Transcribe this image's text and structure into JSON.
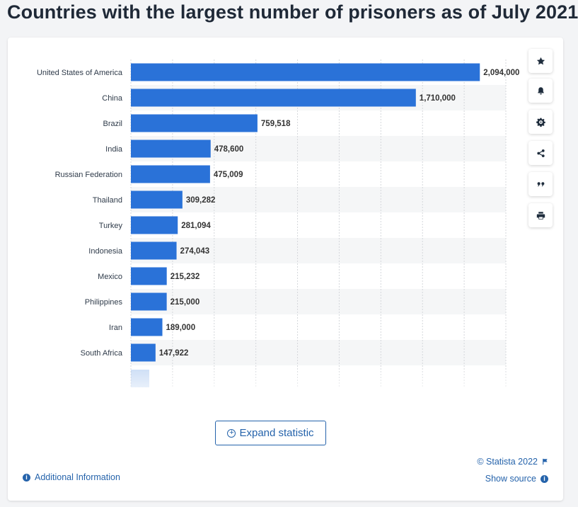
{
  "page": {
    "title": "Countries with the largest number of prisoners as of July 2021"
  },
  "toolbar": {
    "buttons": [
      "star-icon",
      "bell-icon",
      "gear-icon",
      "share-icon",
      "quote-icon",
      "print-icon"
    ]
  },
  "chart_data": {
    "type": "bar",
    "orientation": "horizontal",
    "categories": [
      "United States of America",
      "China",
      "Brazil",
      "India",
      "Russian Federation",
      "Thailand",
      "Turkey",
      "Indonesia",
      "Mexico",
      "Philippines",
      "Iran",
      "South Africa"
    ],
    "values": [
      2094000,
      1710000,
      759518,
      478600,
      475009,
      309282,
      281094,
      274043,
      215232,
      215000,
      189000,
      147922
    ],
    "value_labels": [
      "2,094,000",
      "1,710,000",
      "759,518",
      "478,600",
      "475,009",
      "309,282",
      "281,094",
      "274,043",
      "215,232",
      "215,000",
      "189,000",
      "147,922"
    ],
    "xlim": [
      0,
      2250000
    ],
    "grid": true,
    "bar_color": "#2a72d8",
    "title": "",
    "xlabel": "",
    "ylabel": ""
  },
  "buttons": {
    "expand": "Expand statistic"
  },
  "footer": {
    "additional_info": "Additional Information",
    "credit": "© Statista 2022",
    "show_source": "Show source"
  },
  "colors": {
    "accent": "#2563ab",
    "bar": "#2a72d8"
  }
}
